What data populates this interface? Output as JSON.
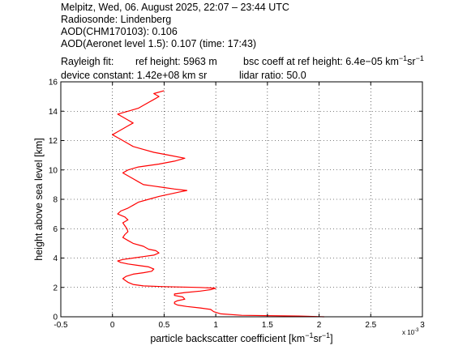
{
  "header": {
    "line1": "Melpitz, Wed, 06. August 2025, 22:07 – 23:44 UTC",
    "line2": "Radiosonde: Lindenberg",
    "line3": "AOD(CHM170103): 0.106",
    "line4": "AOD(Aeronet level 1.5): 0.107   (time: 17:43)",
    "rayleigh_fit": "Rayleigh fit:",
    "ref_height": "ref height: 5963 m",
    "bsc_coeff_prefix": "bsc coeff at ref height: 6.4e−05 km",
    "bsc_coeff_exp1": "−1",
    "bsc_coeff_mid": "sr",
    "bsc_coeff_exp2": "−1",
    "device_constant": "device constant: 1.42e+08 km sr",
    "lidar_ratio": "lidar ratio: 50.0"
  },
  "chart_data": {
    "type": "line",
    "xlabel_prefix": "particle backscatter coefficient [km",
    "xlabel_exp1": "−1",
    "xlabel_mid": "sr",
    "xlabel_exp2": "−1",
    "xlabel_suffix": "]",
    "ylabel": "height above sea level [km]",
    "x_multiplier": "x 10",
    "x_multiplier_exp": "-3",
    "xlim": [
      -0.5,
      3
    ],
    "ylim": [
      0,
      16
    ],
    "xticks": [
      "-0.5",
      "0",
      "0.5",
      "1",
      "1.5",
      "2",
      "2.5",
      "3"
    ],
    "yticks": [
      "0",
      "2",
      "4",
      "6",
      "8",
      "10",
      "12",
      "14",
      "16"
    ],
    "grid": true,
    "line_color": "#ff0000",
    "series": [
      {
        "points": [
          [
            2.05,
            0.0
          ],
          [
            1.8,
            0.05
          ],
          [
            1.25,
            0.1
          ],
          [
            1.05,
            0.2
          ],
          [
            0.98,
            0.35
          ],
          [
            0.95,
            0.5
          ],
          [
            0.85,
            0.6
          ],
          [
            0.72,
            0.7
          ],
          [
            0.63,
            0.8
          ],
          [
            0.6,
            0.9
          ],
          [
            0.6,
            1.0
          ],
          [
            0.63,
            1.1
          ],
          [
            0.7,
            1.2
          ],
          [
            0.68,
            1.35
          ],
          [
            0.6,
            1.45
          ],
          [
            0.6,
            1.55
          ],
          [
            0.7,
            1.65
          ],
          [
            0.85,
            1.75
          ],
          [
            0.95,
            1.85
          ],
          [
            1.0,
            1.95
          ],
          [
            0.85,
            2.0
          ],
          [
            0.5,
            2.05
          ],
          [
            0.3,
            2.1
          ],
          [
            0.2,
            2.2
          ],
          [
            0.15,
            2.35
          ],
          [
            0.12,
            2.5
          ],
          [
            0.1,
            2.6
          ],
          [
            0.13,
            2.75
          ],
          [
            0.2,
            2.9
          ],
          [
            0.3,
            3.0
          ],
          [
            0.38,
            3.1
          ],
          [
            0.4,
            3.25
          ],
          [
            0.35,
            3.4
          ],
          [
            0.25,
            3.5
          ],
          [
            0.15,
            3.6
          ],
          [
            0.08,
            3.7
          ],
          [
            0.05,
            3.8
          ],
          [
            0.1,
            3.9
          ],
          [
            0.2,
            4.0
          ],
          [
            0.3,
            4.1
          ],
          [
            0.4,
            4.2
          ],
          [
            0.45,
            4.35
          ],
          [
            0.42,
            4.5
          ],
          [
            0.35,
            4.6
          ],
          [
            0.3,
            4.8
          ],
          [
            0.2,
            5.0
          ],
          [
            0.15,
            5.2
          ],
          [
            0.1,
            5.4
          ],
          [
            0.12,
            5.6
          ],
          [
            0.15,
            5.8
          ],
          [
            0.14,
            6.0
          ],
          [
            0.12,
            6.2
          ],
          [
            0.1,
            6.4
          ],
          [
            0.15,
            6.6
          ],
          [
            0.12,
            6.8
          ],
          [
            0.05,
            7.0
          ],
          [
            0.08,
            7.2
          ],
          [
            0.15,
            7.4
          ],
          [
            0.2,
            7.6
          ],
          [
            0.25,
            7.8
          ],
          [
            0.35,
            8.0
          ],
          [
            0.45,
            8.2
          ],
          [
            0.55,
            8.35
          ],
          [
            0.65,
            8.5
          ],
          [
            0.72,
            8.6
          ],
          [
            0.6,
            8.7
          ],
          [
            0.5,
            8.8
          ],
          [
            0.4,
            8.9
          ],
          [
            0.3,
            9.0
          ],
          [
            0.25,
            9.2
          ],
          [
            0.2,
            9.4
          ],
          [
            0.15,
            9.6
          ],
          [
            0.1,
            9.8
          ],
          [
            0.15,
            10.0
          ],
          [
            0.25,
            10.2
          ],
          [
            0.45,
            10.4
          ],
          [
            0.6,
            10.6
          ],
          [
            0.7,
            10.8
          ],
          [
            0.55,
            11.0
          ],
          [
            0.4,
            11.2
          ],
          [
            0.3,
            11.4
          ],
          [
            0.2,
            11.6
          ],
          [
            0.15,
            11.8
          ],
          [
            0.1,
            12.0
          ],
          [
            0.05,
            12.2
          ],
          [
            0.0,
            12.4
          ],
          [
            0.05,
            12.6
          ],
          [
            0.1,
            12.8
          ],
          [
            0.15,
            13.0
          ],
          [
            0.2,
            13.2
          ],
          [
            0.15,
            13.4
          ],
          [
            0.1,
            13.6
          ],
          [
            0.05,
            13.8
          ],
          [
            0.15,
            14.0
          ],
          [
            0.25,
            14.2
          ],
          [
            0.3,
            14.4
          ],
          [
            0.35,
            14.6
          ],
          [
            0.4,
            14.8
          ],
          [
            0.45,
            15.0
          ],
          [
            0.4,
            15.2
          ],
          [
            0.5,
            15.4
          ]
        ]
      }
    ]
  }
}
